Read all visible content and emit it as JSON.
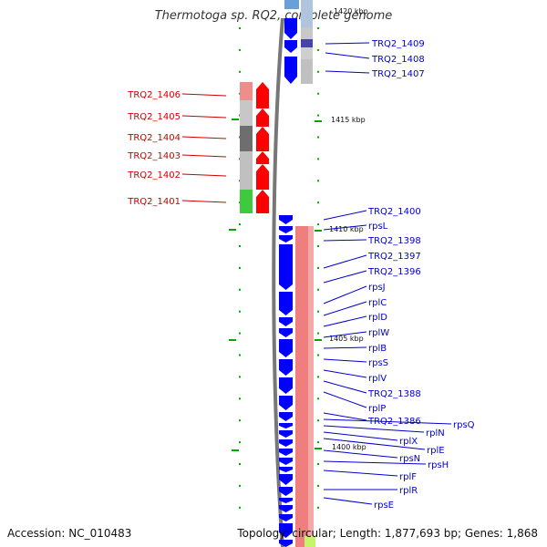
{
  "title": "Thermotoga sp. RQ2, complete genome",
  "accession": "Accession: NC_010483",
  "topology": "Topology: circular; Length: 1,877,693 bp; Genes: 1,868",
  "kbp_marks": [
    "1420 kbp",
    "1415 kbp",
    "1410 kbp",
    "1405 kbp",
    "1400 kbp"
  ],
  "left_genes": [
    "TRQ2_1406",
    "TRQ2_1405",
    "TRQ2_1404",
    "TRQ2_1403",
    "TRQ2_1402",
    "TRQ2_1401"
  ],
  "right_top_genes": [
    "TRQ2_1409",
    "TRQ2_1408",
    "TRQ2_1407"
  ],
  "right_genes": [
    "TRQ2_1400",
    "rpsL",
    "TRQ2_1398",
    "TRQ2_1397",
    "TRQ2_1396",
    "rpsJ",
    "rplC",
    "rplD",
    "rplW",
    "rplB",
    "rpsS",
    "rplV",
    "TRQ2_1388",
    "rplP",
    "TRQ2_1386",
    "rpsQ",
    "rplN",
    "rplX",
    "rplE",
    "rpsN",
    "rpsH",
    "rplF",
    "rplR",
    "rpsE"
  ],
  "colors": {
    "forward": "#ff0000",
    "reverse": "#0000ff",
    "left_label": "#cc0000",
    "right_label": "#0000cc",
    "tick": "#00aa00",
    "backbone": "#777777",
    "cog_pink": "#ef7f7f"
  }
}
